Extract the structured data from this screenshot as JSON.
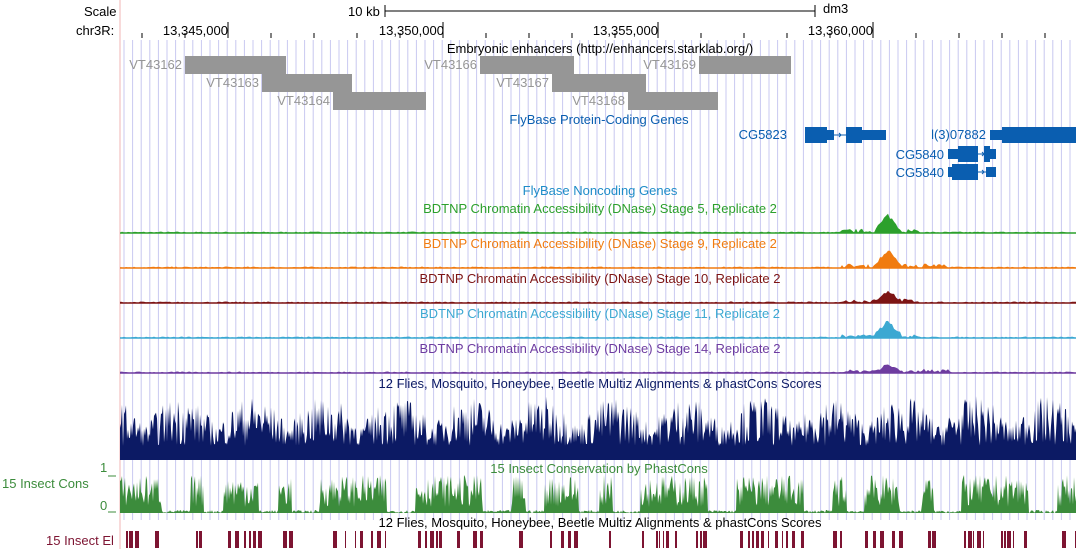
{
  "ruler": {
    "scale_label": "Scale",
    "chrom_label": "chr3R:",
    "scale_bar_label": "10 kb",
    "assembly": "dm3",
    "positions": [
      "13,345,000",
      "13,350,000",
      "13,355,000",
      "13,360,000"
    ]
  },
  "tracks": {
    "enhancers": {
      "title": "Embryonic enhancers (http://enhancers.starklab.org/)",
      "items": [
        "VT43162",
        "VT43163",
        "VT43164",
        "VT43166",
        "VT43167",
        "VT43168",
        "VT43169"
      ]
    },
    "coding_genes": {
      "title": "FlyBase Protein-Coding Genes",
      "genes": [
        "CG5823",
        "l(3)07882",
        "CG5840",
        "CG5840"
      ]
    },
    "noncoding_genes": {
      "title": "FlyBase Noncoding Genes"
    },
    "dnase": [
      {
        "title": "BDTNP Chromatin Accessibility (DNase) Stage 5, Replicate 2",
        "color": "#2ca02c"
      },
      {
        "title": "BDTNP Chromatin Accessibility (DNase) Stage 9, Replicate 2",
        "color": "#f07b10"
      },
      {
        "title": "BDTNP Chromatin Accessibility (DNase) Stage 10, Replicate 2",
        "color": "#7d1414"
      },
      {
        "title": "BDTNP Chromatin Accessibility (DNase) Stage 11, Replicate 2",
        "color": "#3ca8d2"
      },
      {
        "title": "BDTNP Chromatin Accessibility (DNase) Stage 14, Replicate 2",
        "color": "#6e3ca0"
      }
    ],
    "multiz": {
      "title": "12 Flies, Mosquito, Honeybee, Beetle Multiz Alignments & phastCons Scores",
      "color": "#0c1a64"
    },
    "phastcons": {
      "title": "15 Insect Conservation by PhastCons",
      "side_label": "15 Insect Cons",
      "axis_max": "1",
      "axis_min": "0",
      "color": "#3c8c3c"
    },
    "elements": {
      "title": "12 Flies, Mosquito, Honeybee, Beetle Multiz Alignments & phastCons Scores",
      "side_label": "15 Insect El",
      "color": "#7d1432"
    }
  },
  "colors": {
    "grid": "#c8c8f0",
    "gene_blue": "#0a5eb0",
    "enhancer_gray": "#969696",
    "left_border": "#f0b4b4"
  }
}
